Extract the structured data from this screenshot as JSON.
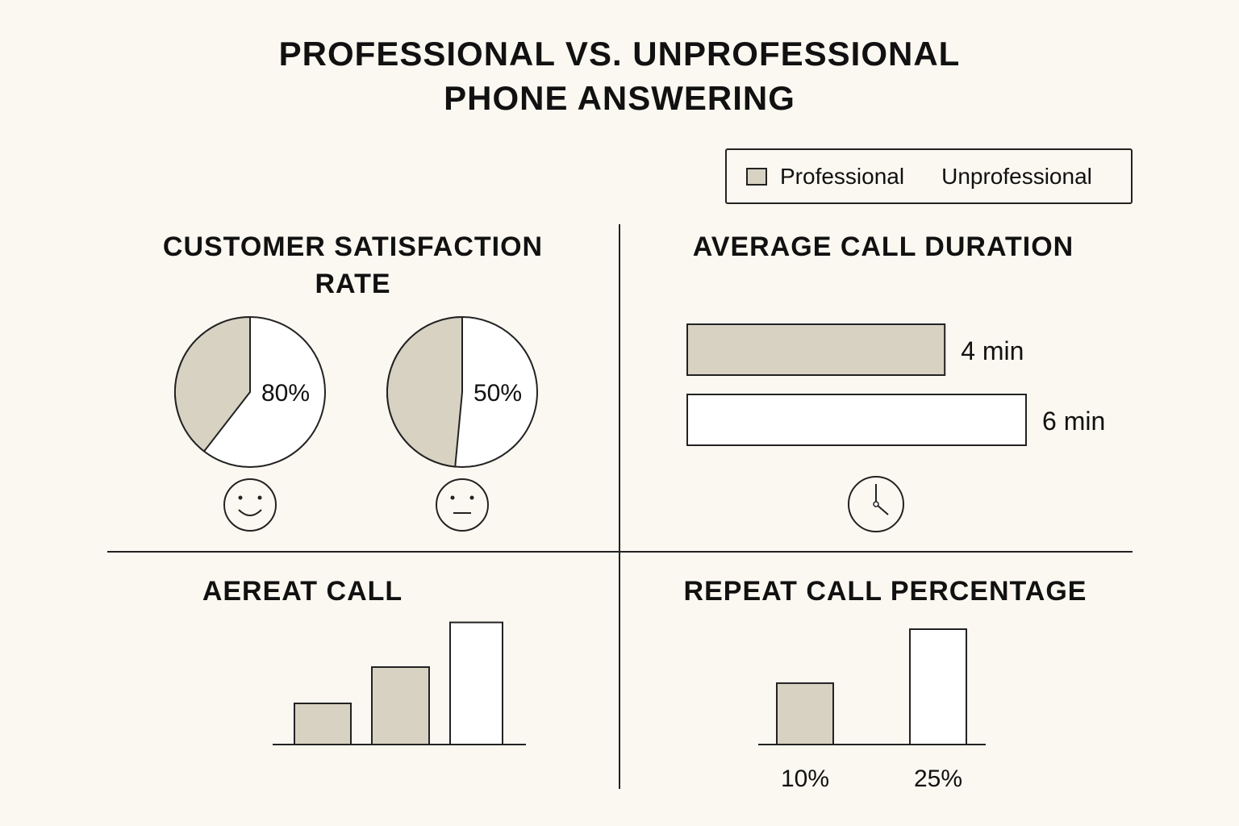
{
  "title": [
    "PROFESSIONAL VS. UNPROFESSIONAL",
    "PHONE ANSWERING"
  ],
  "legend": {
    "professional": "Professional",
    "unprofessional": "Unprofessional"
  },
  "colors": {
    "professional": "#d8d2c3",
    "unprofessional": "#ffffff",
    "stroke": "#222222",
    "background": "#fbf8f1"
  },
  "chart_data": [
    {
      "type": "pie",
      "title": "CUSTOMER SATISFACTION RATE",
      "series": [
        {
          "name": "Professional",
          "value": 80,
          "label": "80%",
          "icon": "smiley-face-icon"
        },
        {
          "name": "Unprofessional",
          "value": 50,
          "label": "50%",
          "icon": "neutral-face-icon"
        }
      ]
    },
    {
      "type": "bar",
      "orientation": "horizontal",
      "title": "AVERAGE CALL DURATION",
      "series": [
        {
          "name": "Professional",
          "value": 4,
          "label": "4 min"
        },
        {
          "name": "Unprofessional",
          "value": 6,
          "label": "6 min"
        }
      ],
      "icon": "clock-icon"
    },
    {
      "type": "bar",
      "title": "AEREAT CALL",
      "values": [
        1,
        2,
        3.4
      ],
      "series_map": [
        "Professional",
        "Professional",
        "Unprofessional"
      ]
    },
    {
      "type": "bar",
      "title": "REPEAT CALL PERCENTAGE",
      "categories": [
        "10%",
        "25%"
      ],
      "series": [
        {
          "name": "Professional",
          "value": 10
        },
        {
          "name": "Unprofessional",
          "value": 25
        }
      ]
    }
  ]
}
